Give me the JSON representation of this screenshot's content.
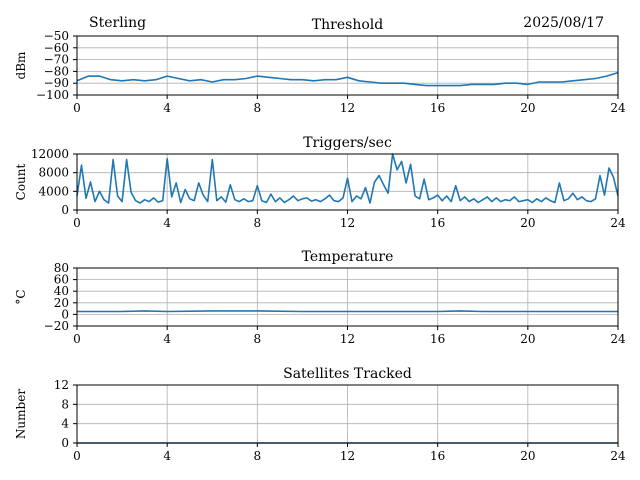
{
  "header": {
    "station": "Sterling",
    "date": "2025/08/17"
  },
  "chart_data": [
    {
      "type": "line",
      "title": "Threshold",
      "xlabel": "",
      "ylabel": "dBm",
      "xlim": [
        0,
        24
      ],
      "ylim": [
        -100,
        -50
      ],
      "xticks": [
        0,
        4,
        8,
        12,
        16,
        20,
        24
      ],
      "yticks": [
        -100,
        -90,
        -80,
        -70,
        -60,
        -50
      ],
      "ytick_labels": [
        "−100",
        "−90",
        "−80",
        "−70",
        "−60",
        "−50"
      ],
      "grid": true,
      "color": "#1f77b4",
      "series": [
        {
          "x": [
            0,
            0.5,
            1,
            1.5,
            2,
            2.5,
            3,
            3.5,
            4,
            4.5,
            5,
            5.5,
            6,
            6.5,
            7,
            7.5,
            8,
            8.5,
            9,
            9.5,
            10,
            10.5,
            11,
            11.5,
            12,
            12.5,
            13,
            13.5,
            14,
            14.5,
            15,
            15.5,
            16,
            16.5,
            17,
            17.5,
            18,
            18.5,
            19,
            19.5,
            20,
            20.5,
            21,
            21.5,
            22,
            22.5,
            23,
            23.5,
            24
          ],
          "values": [
            -88,
            -84,
            -84,
            -87,
            -88,
            -87,
            -88,
            -87,
            -84,
            -86,
            -88,
            -87,
            -89,
            -87,
            -87,
            -86,
            -84,
            -85,
            -86,
            -87,
            -87,
            -88,
            -87,
            -87,
            -85,
            -88,
            -89,
            -90,
            -90,
            -90,
            -91,
            -92,
            -92,
            -92,
            -92,
            -91,
            -91,
            -91,
            -90,
            -90,
            -91,
            -89,
            -89,
            -89,
            -88,
            -87,
            -86,
            -84,
            -81
          ]
        }
      ]
    },
    {
      "type": "line",
      "title": "Triggers/sec",
      "xlabel": "",
      "ylabel": "Count",
      "xlim": [
        0,
        24
      ],
      "ylim": [
        0,
        12000
      ],
      "xticks": [
        0,
        4,
        8,
        12,
        16,
        20,
        24
      ],
      "yticks": [
        0,
        4000,
        8000,
        12000
      ],
      "ytick_labels": [
        "0",
        "4000",
        "8000",
        "12000"
      ],
      "grid": true,
      "color": "#1f77b4",
      "series": [
        {
          "x": [
            0,
            0.2,
            0.4,
            0.6,
            0.8,
            1.0,
            1.2,
            1.4,
            1.6,
            1.8,
            2.0,
            2.2,
            2.4,
            2.6,
            2.8,
            3.0,
            3.2,
            3.4,
            3.6,
            3.8,
            4.0,
            4.2,
            4.4,
            4.6,
            4.8,
            5.0,
            5.2,
            5.4,
            5.6,
            5.8,
            6.0,
            6.2,
            6.4,
            6.6,
            6.8,
            7.0,
            7.2,
            7.4,
            7.6,
            7.8,
            8.0,
            8.2,
            8.4,
            8.6,
            8.8,
            9.0,
            9.2,
            9.4,
            9.6,
            9.8,
            10.0,
            10.2,
            10.4,
            10.6,
            10.8,
            11.0,
            11.2,
            11.4,
            11.6,
            11.8,
            12.0,
            12.2,
            12.4,
            12.6,
            12.8,
            13.0,
            13.2,
            13.4,
            13.6,
            13.8,
            14.0,
            14.2,
            14.4,
            14.6,
            14.8,
            15.0,
            15.2,
            15.4,
            15.6,
            15.8,
            16.0,
            16.2,
            16.4,
            16.6,
            16.8,
            17.0,
            17.2,
            17.4,
            17.6,
            17.8,
            18.0,
            18.2,
            18.4,
            18.6,
            18.8,
            19.0,
            19.2,
            19.4,
            19.6,
            19.8,
            20.0,
            20.2,
            20.4,
            20.6,
            20.8,
            21.0,
            21.2,
            21.4,
            21.6,
            21.8,
            22.0,
            22.2,
            22.4,
            22.6,
            22.8,
            23.0,
            23.2,
            23.4,
            23.6,
            23.8,
            24.0
          ],
          "values": [
            3000,
            9600,
            2500,
            6000,
            1800,
            4000,
            2200,
            1500,
            10800,
            3000,
            1800,
            10800,
            3800,
            2000,
            1500,
            2200,
            1800,
            2600,
            1700,
            2000,
            11000,
            2800,
            5800,
            1600,
            4400,
            2400,
            2000,
            5800,
            3200,
            1800,
            10800,
            2000,
            2800,
            1700,
            5400,
            2200,
            1800,
            2400,
            1800,
            2000,
            5200,
            2000,
            1600,
            3400,
            1800,
            2600,
            1600,
            2200,
            3000,
            2000,
            2400,
            2600,
            1900,
            2200,
            1800,
            2400,
            3200,
            2000,
            1800,
            2600,
            6800,
            1800,
            3000,
            2400,
            4800,
            1500,
            6000,
            7400,
            5400,
            3600,
            12000,
            8600,
            10400,
            5800,
            9800,
            3000,
            2400,
            6600,
            2200,
            2600,
            3200,
            2000,
            3000,
            1800,
            5200,
            2000,
            2800,
            1800,
            2400,
            1600,
            2200,
            2800,
            1800,
            2600,
            1800,
            2200,
            2000,
            2800,
            1800,
            2000,
            2200,
            1600,
            2400,
            1800,
            2600,
            2000,
            1600,
            5800,
            2000,
            2400,
            3600,
            2200,
            2800,
            2000,
            1800,
            2400,
            7400,
            3200,
            9000,
            7000,
            3000
          ]
        }
      ]
    },
    {
      "type": "line",
      "title": "Temperature",
      "xlabel": "",
      "ylabel": "°C",
      "xlim": [
        0,
        24
      ],
      "ylim": [
        -20,
        80
      ],
      "xticks": [
        0,
        4,
        8,
        12,
        16,
        20,
        24
      ],
      "yticks": [
        -20,
        0,
        20,
        40,
        60,
        80
      ],
      "ytick_labels": [
        "−20",
        "0",
        "20",
        "40",
        "60",
        "80"
      ],
      "grid": true,
      "color": "#1f77b4",
      "series": [
        {
          "x": [
            0,
            2,
            3,
            4,
            6,
            8,
            10,
            12,
            14,
            16,
            17,
            18,
            20,
            22,
            24
          ],
          "values": [
            5,
            5,
            6,
            5,
            6,
            6,
            5,
            5,
            5,
            5,
            6,
            5,
            5,
            5,
            5
          ]
        }
      ]
    },
    {
      "type": "line",
      "title": "Satellites Tracked",
      "xlabel": "",
      "ylabel": "Number",
      "xlim": [
        0,
        24
      ],
      "ylim": [
        0,
        12
      ],
      "xticks": [
        0,
        4,
        8,
        12,
        16,
        20,
        24
      ],
      "yticks": [
        0,
        4,
        8,
        12
      ],
      "ytick_labels": [
        "0",
        "4",
        "8",
        "12"
      ],
      "grid": true,
      "color": "#1f77b4",
      "series": [
        {
          "x": [
            0,
            24
          ],
          "values": [
            0,
            0
          ]
        }
      ]
    }
  ]
}
